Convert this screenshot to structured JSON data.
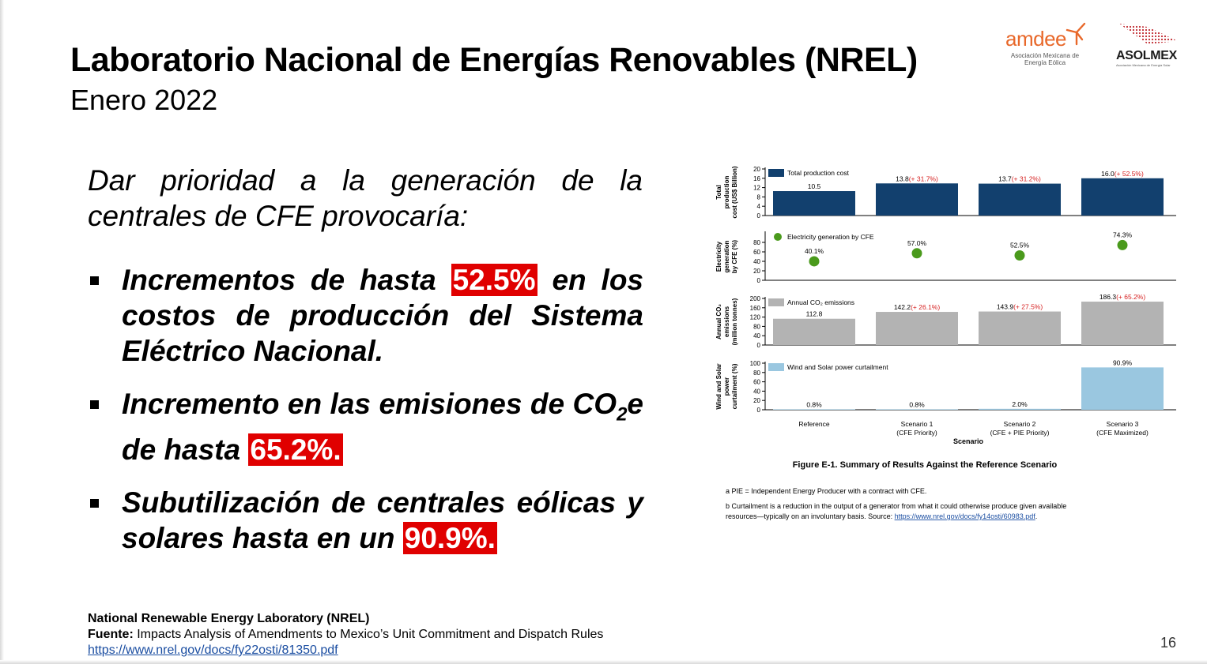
{
  "slide": {
    "title": "Laboratorio Nacional de Energías Renovables (NREL)",
    "subtitle": "Enero 2022",
    "page_number": "16"
  },
  "logos": {
    "amdee": {
      "word": "amdee",
      "sub": "Asociación Mexicana de Energía Eólica",
      "color": "#e8682a"
    },
    "asolmex": {
      "word": "ASOLMEX",
      "sub": "Asociación Mexicana de Energía Solar"
    }
  },
  "body": {
    "intro": "Dar prioridad a la generación de la centrales de CFE provocaría:",
    "bullets": [
      {
        "pre": "Incrementos de hasta ",
        "highlight": "52.5%",
        "post": " en los costos de producción del Sistema Eléctrico Nacional."
      },
      {
        "pre": "Incremento en las emisiones de CO",
        "sub": "2",
        "mid": "e de hasta ",
        "highlight": "65.2%."
      },
      {
        "pre": "Subutilización de centrales eólicas y solares hasta en un ",
        "highlight": "90.9%."
      }
    ],
    "highlight_color": "#e00000"
  },
  "footer": {
    "org": "National Renewable Energy Laboratory (NREL)",
    "source_label": "Fuente:",
    "source_text": " Impacts Analysis of Amendments to Mexico’s Unit Commitment and Dispatch Rules",
    "url": "https://www.nrel.gov/docs/fy22osti/81350.pdf"
  },
  "figure": {
    "caption": "Figure E-1. Summary of Results Against the Reference Scenario",
    "note_a": "a PIE = Independent Energy Producer with a contract with CFE.",
    "note_b_line1": "b Curtailment is a reduction in the output of a generator from what it could otherwise produce given available",
    "note_b_line2": "resources—typically on an involuntary basis. Source: ",
    "note_b_link": "https://www.nrel.gov/docs/fy14osti/60983.pdf",
    "note_b_end": "."
  },
  "chart_data": {
    "type": "bar",
    "xlabel": "Scenario",
    "categories": [
      {
        "line1": "Reference",
        "line2": ""
      },
      {
        "line1": "Scenario 1",
        "line2": "(CFE Priority)"
      },
      {
        "line1": "Scenario 2",
        "line2": "(CFE + PIE Priority)"
      },
      {
        "line1": "Scenario 3",
        "line2": "(CFE Maximized)"
      }
    ],
    "panels": [
      {
        "kind": "bar",
        "ylabel_lines": [
          "Total",
          "production",
          "cost (US$ Billion)"
        ],
        "legend": "Total production cost",
        "color": "#12406e",
        "ylim": [
          0,
          20
        ],
        "ticks": [
          0,
          4,
          8,
          12,
          16,
          20
        ],
        "values": [
          10.5,
          13.8,
          13.7,
          16.0
        ],
        "labels": [
          "10.5",
          "13.8",
          "13.7",
          "16.0"
        ],
        "changes": [
          "",
          "(+ 31.7%)",
          "(+ 31.2%)",
          "(+ 52.5%)"
        ]
      },
      {
        "kind": "dot",
        "ylabel_lines": [
          "Electricity",
          "generation",
          "by CFE (%)"
        ],
        "legend": "Electricity generation by CFE",
        "color": "#4a9a1c",
        "ylim": [
          0,
          100
        ],
        "ticks": [
          0,
          20,
          40,
          60,
          80
        ],
        "values": [
          40.1,
          57.0,
          52.5,
          74.3
        ],
        "labels": [
          "40.1%",
          "57.0%",
          "52.5%",
          "74.3%"
        ],
        "changes": [
          "",
          "",
          "",
          ""
        ]
      },
      {
        "kind": "bar",
        "ylabel_lines": [
          "Annual CO₂",
          "emissions",
          "(million tonnes)"
        ],
        "legend": "Annual CO₂ emissions",
        "color": "#b3b3b3",
        "ylim": [
          0,
          200
        ],
        "ticks": [
          0,
          40,
          80,
          120,
          160,
          200
        ],
        "values": [
          112.8,
          142.2,
          143.9,
          186.3
        ],
        "labels": [
          "112.8",
          "142.2",
          "143.9",
          "186.3"
        ],
        "changes": [
          "",
          "(+ 26.1%)",
          "(+ 27.5%)",
          "(+ 65.2%)"
        ]
      },
      {
        "kind": "bar",
        "ylabel_lines": [
          "Wind and Solar",
          "power",
          "curtailment (%)"
        ],
        "legend": "Wind and Solar power curtailment",
        "color": "#9ac7e0",
        "ylim": [
          0,
          100
        ],
        "ticks": [
          0,
          20,
          40,
          60,
          80,
          100
        ],
        "values": [
          0.8,
          0.8,
          2.0,
          90.9
        ],
        "labels": [
          "0.8%",
          "0.8%",
          "2.0%",
          "90.9%"
        ],
        "changes": [
          "",
          "",
          "",
          ""
        ]
      }
    ]
  }
}
